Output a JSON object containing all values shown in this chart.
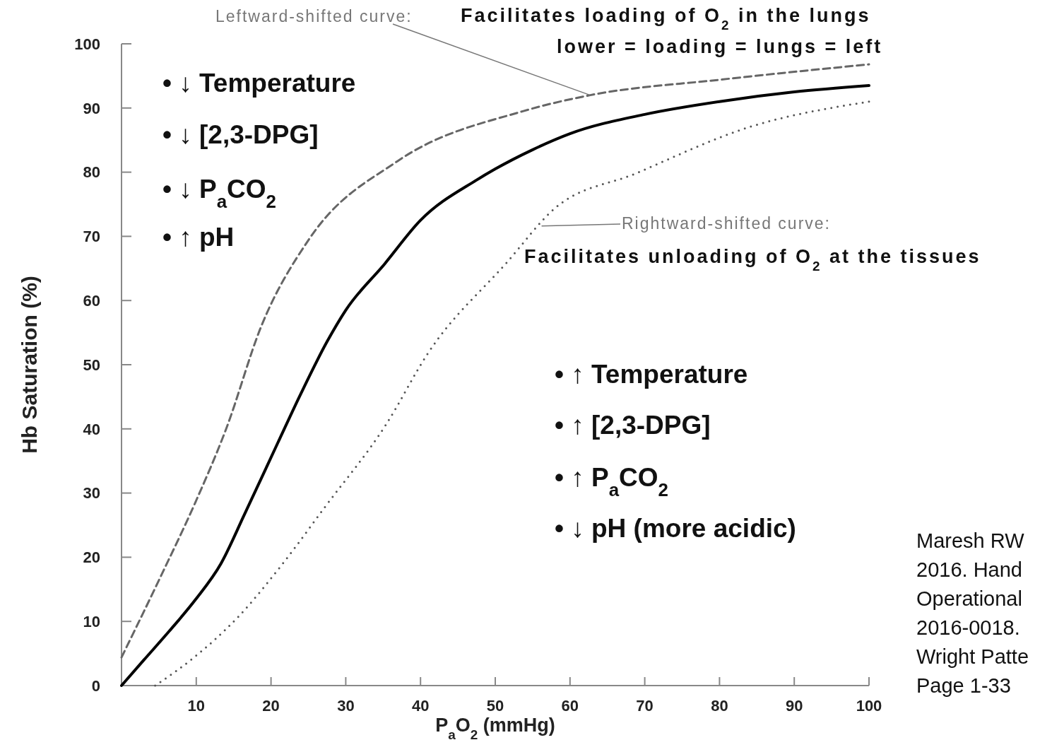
{
  "chart_data": {
    "type": "line",
    "xlabel": "P$_{a}$O$_{2}$ (mmHg)",
    "ylabel": "Hb Saturation (%)",
    "xlim": [
      0,
      100
    ],
    "ylim": [
      0,
      100
    ],
    "xticks": [
      {
        "value": 0,
        "label": null
      },
      10,
      20,
      30,
      40,
      50,
      60,
      70,
      80,
      90,
      100
    ],
    "yticks": [
      0,
      10,
      20,
      30,
      40,
      50,
      60,
      70,
      80,
      90,
      100
    ],
    "grid": false,
    "series": [
      {
        "color": "#000000",
        "line_style": "solid",
        "x": [
          0,
          3,
          6.4,
          9.9,
          13.3,
          16.5,
          20.9,
          24,
          27.5,
          30,
          35.2,
          40,
          47.4,
          50,
          55,
          60,
          70,
          80,
          90,
          100
        ],
        "values": [
          0,
          4,
          8.5,
          13.4,
          19,
          26.8,
          37.8,
          45.5,
          53.6,
          58.5,
          65.7,
          72.5,
          78.7,
          80.5,
          83.5,
          86,
          89,
          91,
          92.5,
          93.5
        ]
      },
      {
        "color": "#666666",
        "line_style": "dashed",
        "x": [
          0,
          5.2,
          9.9,
          14,
          18.7,
          25,
          36.9,
          53.7,
          62.7,
          80,
          100
        ],
        "values": [
          4.4,
          16.9,
          28.6,
          40,
          56,
          69.4,
          81.7,
          89.5,
          92,
          94.4,
          96.8
        ]
      },
      {
        "color": "#555555",
        "line_style": "dotted",
        "x": [
          4.5,
          9.5,
          15.6,
          21.5,
          27.2,
          35.4,
          41,
          51.6,
          57.9,
          68.8,
          83.9,
          100
        ],
        "values": [
          0,
          4.2,
          10.7,
          18.9,
          27.8,
          40.7,
          51.8,
          66,
          74.3,
          79.8,
          87,
          91
        ]
      }
    ],
    "annotations": [
      {
        "text": "Leftward-shifted curve:",
        "x": 62.7,
        "y": 92
      },
      "Facilitates loading of O$_{2}$ in the lungs",
      "lower = loading = lungs = left",
      {
        "text": "Rightward-shifted curve:",
        "x": 56.2,
        "y": 71.6
      },
      "Facilitates unloading of O$_{2}$ at the tissues",
      "• ↓ Temperature",
      "• ↓ [2,3-DPG]",
      "• ↓ P$_{a}$CO$_{2}$",
      "• ↑ pH",
      "• ↑ Temperature",
      "• ↑ [2,3-DPG]",
      "• ↑ P$_{a}$CO$_{2}$",
      "• ↓ pH (more acidic)",
      "Maresh RW\n2016. Hand\nOperational\n2016-0018.\nWright Patte\nPage 1-33"
    ]
  }
}
